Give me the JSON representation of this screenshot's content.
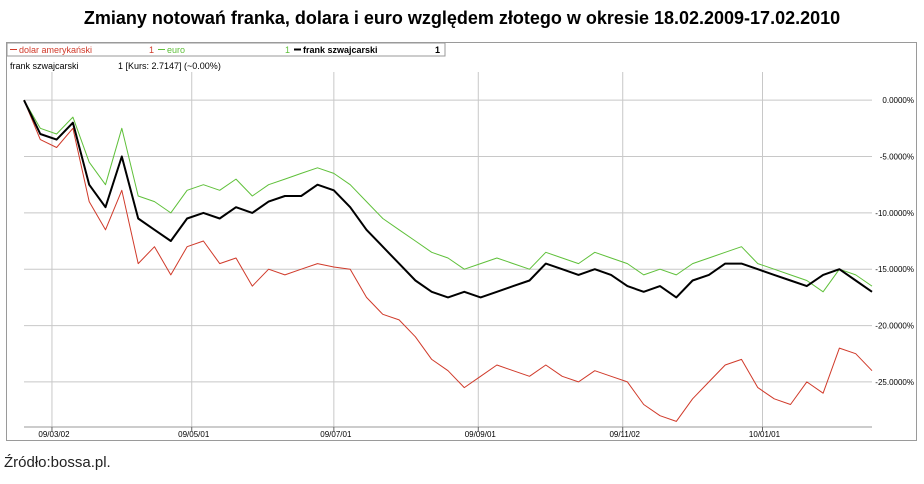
{
  "title": "Zmiany notowań franka, dolara i euro względem złotego w okresie 18.02.2009-17.02.2010",
  "source": "Źródło:bossa.pl.",
  "legend_bar": [
    {
      "label": "dolar amerykański",
      "value": "1",
      "color": "#d03a2a"
    },
    {
      "label": "euro",
      "value": "1",
      "color": "#5fc03a"
    },
    {
      "label": "frank szwajcarski",
      "value": "1",
      "color": "#000000"
    }
  ],
  "info_line": {
    "name": "frank szwajcarski",
    "details": "1 [Kurs: 2.7147] (~0.00%)"
  },
  "colors": {
    "usd": "#d03a2a",
    "eur": "#5fc03a",
    "chf": "#000000",
    "grid": "#c8c8c8",
    "frame": "#9a9a9a"
  },
  "chart_data": {
    "type": "line",
    "x_ticks": [
      "09/03/02",
      "09/05/01",
      "09/07/01",
      "09/09/01",
      "09/11/02",
      "10/01/01"
    ],
    "y_ticks": [
      "0.0000%",
      "-5.0000%",
      "-10.0000%",
      "-15.0000%",
      "-20.0000%",
      "-25.0000%"
    ],
    "x": [
      "2009-02-18",
      "2009-02-25",
      "2009-03-04",
      "2009-03-11",
      "2009-03-18",
      "2009-03-25",
      "2009-04-01",
      "2009-04-08",
      "2009-04-15",
      "2009-04-22",
      "2009-04-29",
      "2009-05-06",
      "2009-05-13",
      "2009-05-20",
      "2009-05-27",
      "2009-06-03",
      "2009-06-10",
      "2009-06-17",
      "2009-06-24",
      "2009-07-01",
      "2009-07-08",
      "2009-07-15",
      "2009-07-22",
      "2009-07-29",
      "2009-08-05",
      "2009-08-12",
      "2009-08-19",
      "2009-08-26",
      "2009-09-02",
      "2009-09-09",
      "2009-09-16",
      "2009-09-23",
      "2009-09-30",
      "2009-10-07",
      "2009-10-14",
      "2009-10-21",
      "2009-10-28",
      "2009-11-04",
      "2009-11-11",
      "2009-11-18",
      "2009-11-25",
      "2009-12-02",
      "2009-12-09",
      "2009-12-16",
      "2009-12-23",
      "2009-12-30",
      "2010-01-06",
      "2010-01-13",
      "2010-01-20",
      "2010-01-27",
      "2010-02-03",
      "2010-02-10",
      "2010-02-17"
    ],
    "series": [
      {
        "name": "dolar amerykański",
        "color": "#d03a2a",
        "values": [
          0.0,
          -3.5,
          -4.2,
          -2.5,
          -9.0,
          -11.5,
          -8.0,
          -14.5,
          -13.0,
          -15.5,
          -13.0,
          -12.5,
          -14.5,
          -14.0,
          -16.5,
          -15.0,
          -15.5,
          -15.0,
          -14.5,
          -14.8,
          -15.0,
          -17.5,
          -19.0,
          -19.5,
          -21.0,
          -23.0,
          -24.0,
          -25.5,
          -24.5,
          -23.5,
          -24.0,
          -24.5,
          -23.5,
          -24.5,
          -25.0,
          -24.0,
          -24.5,
          -25.0,
          -27.0,
          -28.0,
          -28.5,
          -26.5,
          -25.0,
          -23.5,
          -23.0,
          -25.5,
          -26.5,
          -27.0,
          -25.0,
          -26.0,
          -22.0,
          -22.5,
          -24.0
        ]
      },
      {
        "name": "euro",
        "color": "#5fc03a",
        "values": [
          0.0,
          -2.5,
          -3.0,
          -1.5,
          -5.5,
          -7.5,
          -2.5,
          -8.5,
          -9.0,
          -10.0,
          -8.0,
          -7.5,
          -8.0,
          -7.0,
          -8.5,
          -7.5,
          -7.0,
          -6.5,
          -6.0,
          -6.5,
          -7.5,
          -9.0,
          -10.5,
          -11.5,
          -12.5,
          -13.5,
          -14.0,
          -15.0,
          -14.5,
          -14.0,
          -14.5,
          -15.0,
          -13.5,
          -14.0,
          -14.5,
          -13.5,
          -14.0,
          -14.5,
          -15.5,
          -15.0,
          -15.5,
          -14.5,
          -14.0,
          -13.5,
          -13.0,
          -14.5,
          -15.0,
          -15.5,
          -16.0,
          -17.0,
          -15.0,
          -15.5,
          -16.5
        ]
      },
      {
        "name": "frank szwajcarski",
        "color": "#000000",
        "values": [
          0.0,
          -3.0,
          -3.5,
          -2.0,
          -7.5,
          -9.5,
          -5.0,
          -10.5,
          -11.5,
          -12.5,
          -10.5,
          -10.0,
          -10.5,
          -9.5,
          -10.0,
          -9.0,
          -8.5,
          -8.5,
          -7.5,
          -8.0,
          -9.5,
          -11.5,
          -13.0,
          -14.5,
          -16.0,
          -17.0,
          -17.5,
          -17.0,
          -17.5,
          -17.0,
          -16.5,
          -16.0,
          -14.5,
          -15.0,
          -15.5,
          -15.0,
          -15.5,
          -16.5,
          -17.0,
          -16.5,
          -17.5,
          -16.0,
          -15.5,
          -14.5,
          -14.5,
          -15.0,
          -15.5,
          -16.0,
          -16.5,
          -15.5,
          -15.0,
          -16.0,
          -17.0
        ]
      }
    ],
    "ylim": [
      -29,
      2.5
    ],
    "grid": true,
    "legend": "top"
  }
}
